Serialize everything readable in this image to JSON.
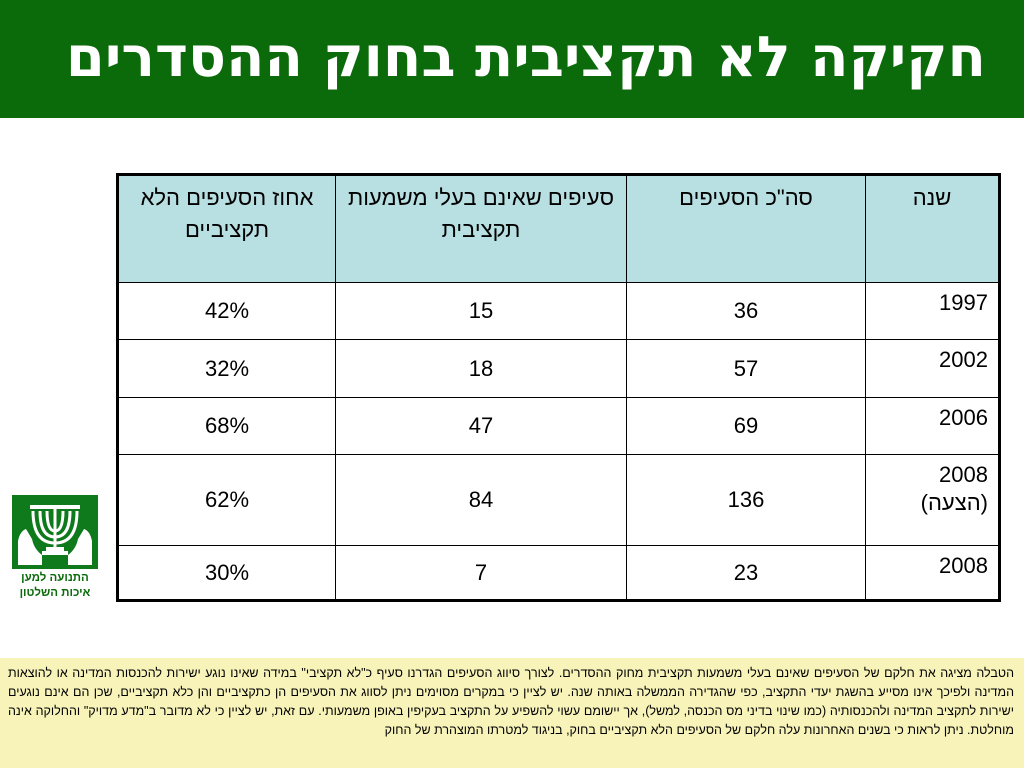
{
  "header": {
    "title": "חקיקה לא תקציבית בחוק ההסדרים"
  },
  "table": {
    "headers": [
      "שנה",
      "סה\"כ הסעיפים",
      "סעיפים שאינם בעלי משמעות תקציבית",
      "אחוז הסעיפים הלא תקציביים"
    ],
    "rows": [
      {
        "year": "1997",
        "year_note": "",
        "total": "36",
        "non_budget": "15",
        "percent": "42%"
      },
      {
        "year": "2002",
        "year_note": "",
        "total": "57",
        "non_budget": "18",
        "percent": "32%"
      },
      {
        "year": "2006",
        "year_note": "",
        "total": "69",
        "non_budget": "47",
        "percent": "68%"
      },
      {
        "year": "2008",
        "year_note": "(הצעה)",
        "total": "136",
        "non_budget": "84",
        "percent": "62%"
      },
      {
        "year": "2008",
        "year_note": "",
        "total": "23",
        "non_budget": "7",
        "percent": "30%"
      }
    ]
  },
  "logo": {
    "line1": "התנועה למען",
    "line2": "איכות השלטון",
    "colors": {
      "green": "#0f7a1c",
      "white": "#ffffff"
    }
  },
  "footer": {
    "text": "הטבלה מציגה את חלקם של הסעיפים שאינם בעלי משמעות תקציבית מחוק ההסדרים. לצורך סיווג הסעיפים הגדרנו סעיף כ\"לא תקציבי\" במידה שאינו נוגע ישירות להכנסות המדינה או להוצאות המדינה ולפיכך אינו מסייע בהשגת יעדי התקציב, כפי שהגדירה הממשלה באותה שנה. יש לציין כי במקרים מסוימים ניתן לסווג את הסעיפים הן כתקציביים והן כלא תקציביים, שכן הם אינם נוגעים ישירות לתקציב המדינה ולהכנסותיה (כמו שינוי בדיני מס הכנסה, למשל), אך יישומם עשוי להשפיע על התקציב בעקיפין באופן משמעותי. עם זאת, יש לציין כי לא מדובר ב\"מדע מדויק\" והחלוקה אינה מוחלטת. ניתן לראות כי בשנים האחרונות עלה חלקם של הסעיפים הלא תקציביים בחוק, בניגוד למטרתו המוצהרת של החוק"
  },
  "colors": {
    "header_bg": "#0b6b0b",
    "table_header_bg": "#b8dfe2",
    "footer_bg": "#f7f3b9"
  }
}
